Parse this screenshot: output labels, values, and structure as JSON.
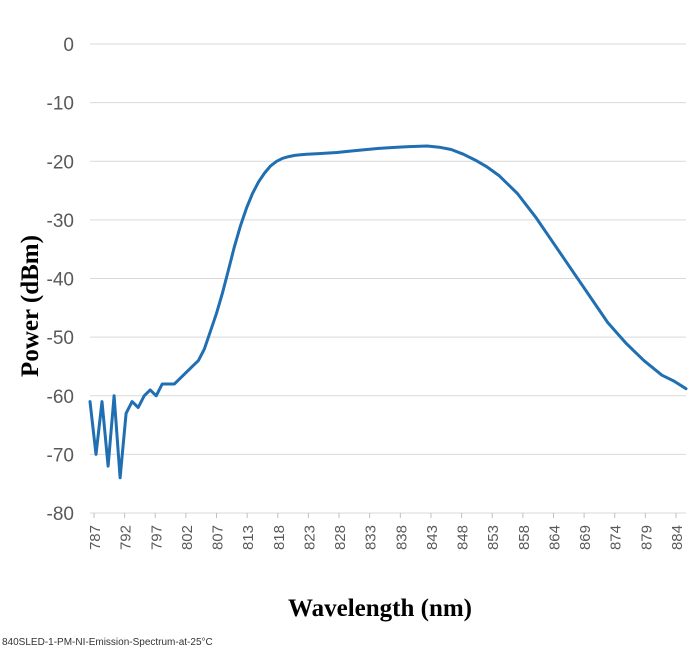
{
  "chart_data": {
    "type": "line",
    "title": "",
    "xlabel": "Wavelength (nm)",
    "ylabel": "Power (dBm)",
    "ylim": [
      -80,
      0
    ],
    "yticks": [
      0,
      -10,
      -20,
      -30,
      -40,
      -50,
      -60,
      -70,
      -80
    ],
    "xticks": [
      "787",
      "792",
      "797",
      "802",
      "807",
      "813",
      "818",
      "823",
      "828",
      "833",
      "838",
      "843",
      "848",
      "853",
      "858",
      "864",
      "869",
      "874",
      "879",
      "884"
    ],
    "xlim": [
      787,
      886
    ],
    "grid": true,
    "line_color": "#1f6fb2",
    "series": [
      {
        "name": "",
        "x": [
          787,
          788,
          789,
          790,
          791,
          792,
          793,
          794,
          795,
          796,
          797,
          798,
          799,
          800,
          801,
          802,
          803,
          804,
          805,
          806,
          807,
          808,
          809,
          810,
          811,
          812,
          813,
          814,
          815,
          816,
          817,
          818,
          819,
          820,
          821,
          822,
          823,
          825,
          828,
          830,
          833,
          835,
          838,
          840,
          843,
          845,
          847,
          849,
          851,
          853,
          855,
          858,
          861,
          864,
          867,
          870,
          873,
          876,
          879,
          882,
          884,
          886
        ],
        "y": [
          -61,
          -70,
          -61,
          -72,
          -60,
          -74,
          -63,
          -61,
          -62,
          -60,
          -59,
          -60,
          -58,
          -58,
          -58,
          -57,
          -56,
          -55,
          -54,
          -52,
          -49,
          -46,
          -42.5,
          -38.5,
          -34.5,
          -31,
          -28,
          -25.5,
          -23.5,
          -22,
          -20.8,
          -20.0,
          -19.5,
          -19.2,
          -19.0,
          -18.9,
          -18.8,
          -18.7,
          -18.5,
          -18.3,
          -18.0,
          -17.8,
          -17.6,
          -17.5,
          -17.4,
          -17.6,
          -18.0,
          -18.8,
          -19.8,
          -21.0,
          -22.5,
          -25.5,
          -29.5,
          -34.0,
          -38.5,
          -43.0,
          -47.5,
          -51.0,
          -54.0,
          -56.5,
          -57.5,
          -58.8
        ]
      }
    ]
  },
  "caption": "840SLED-1-PM-NI-Emission-Spectrum-at-25°C"
}
